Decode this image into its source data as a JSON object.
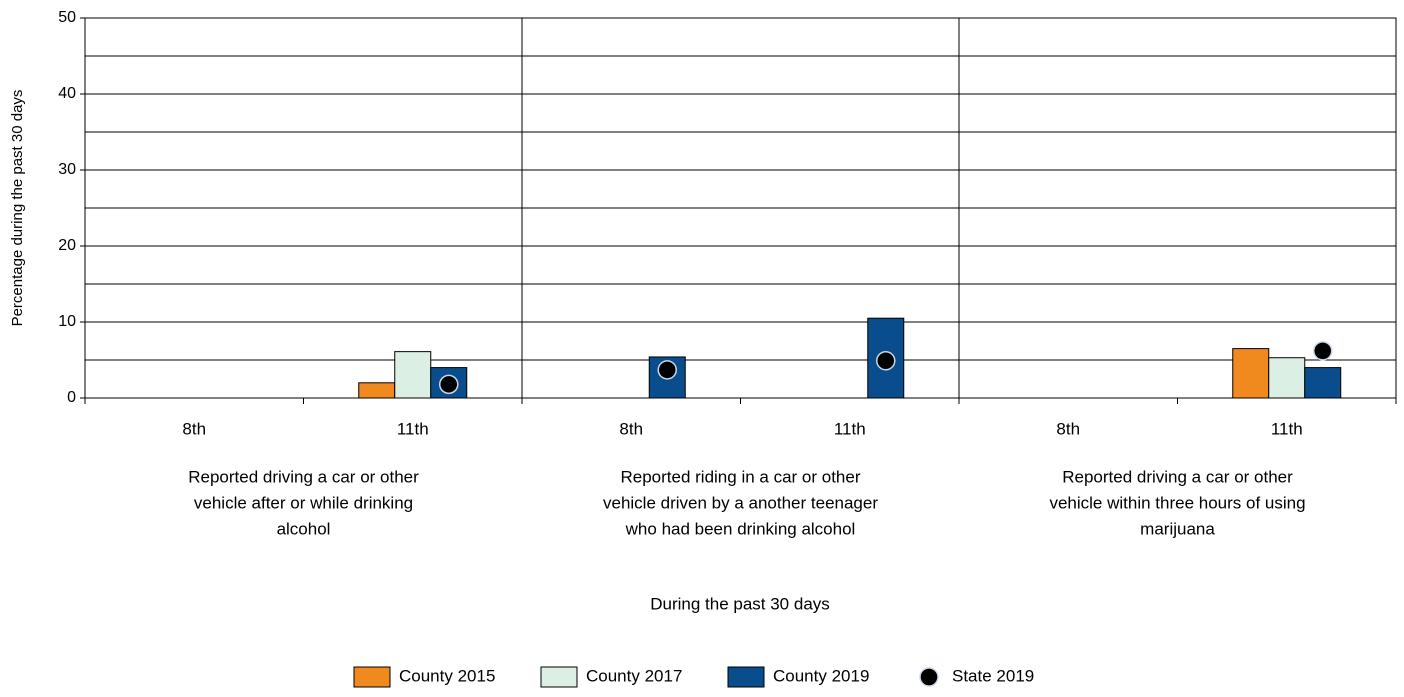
{
  "chart_data": {
    "type": "bar",
    "ylabel": "Percentage during the past 30 days",
    "xlabel": "During the past 30 days",
    "categories": [
      "8th",
      "11th",
      "8th",
      "11th",
      "8th",
      "11th"
    ],
    "group_labels": [
      [
        "Reported driving a car or other",
        "vehicle after or while drinking",
        "alcohol"
      ],
      [
        "Reported riding in a car or other",
        "vehicle driven by a another teenager",
        "who had been drinking alcohol"
      ],
      [
        "Reported driving a car or other",
        "vehicle within three hours of using",
        "marijuana"
      ]
    ],
    "series": [
      {
        "name": "County 2015",
        "color": "#f0891e",
        "values": [
          null,
          2.0,
          null,
          null,
          null,
          6.5
        ]
      },
      {
        "name": "County 2017",
        "color": "#dcefe4",
        "values": [
          null,
          6.1,
          null,
          null,
          null,
          5.3
        ]
      },
      {
        "name": "County 2019",
        "color": "#0a4d8c",
        "values": [
          null,
          4.0,
          5.4,
          10.5,
          null,
          4.0
        ]
      },
      {
        "name": "State 2019",
        "color": "#000000",
        "marker": "dot",
        "values": [
          null,
          1.8,
          3.7,
          4.9,
          null,
          6.2
        ]
      }
    ],
    "ylim": [
      0,
      50
    ],
    "yticks": [
      0,
      10,
      20,
      30,
      40,
      50
    ],
    "minor_yticks": [
      5,
      15,
      25,
      35,
      45
    ],
    "grid": true
  }
}
